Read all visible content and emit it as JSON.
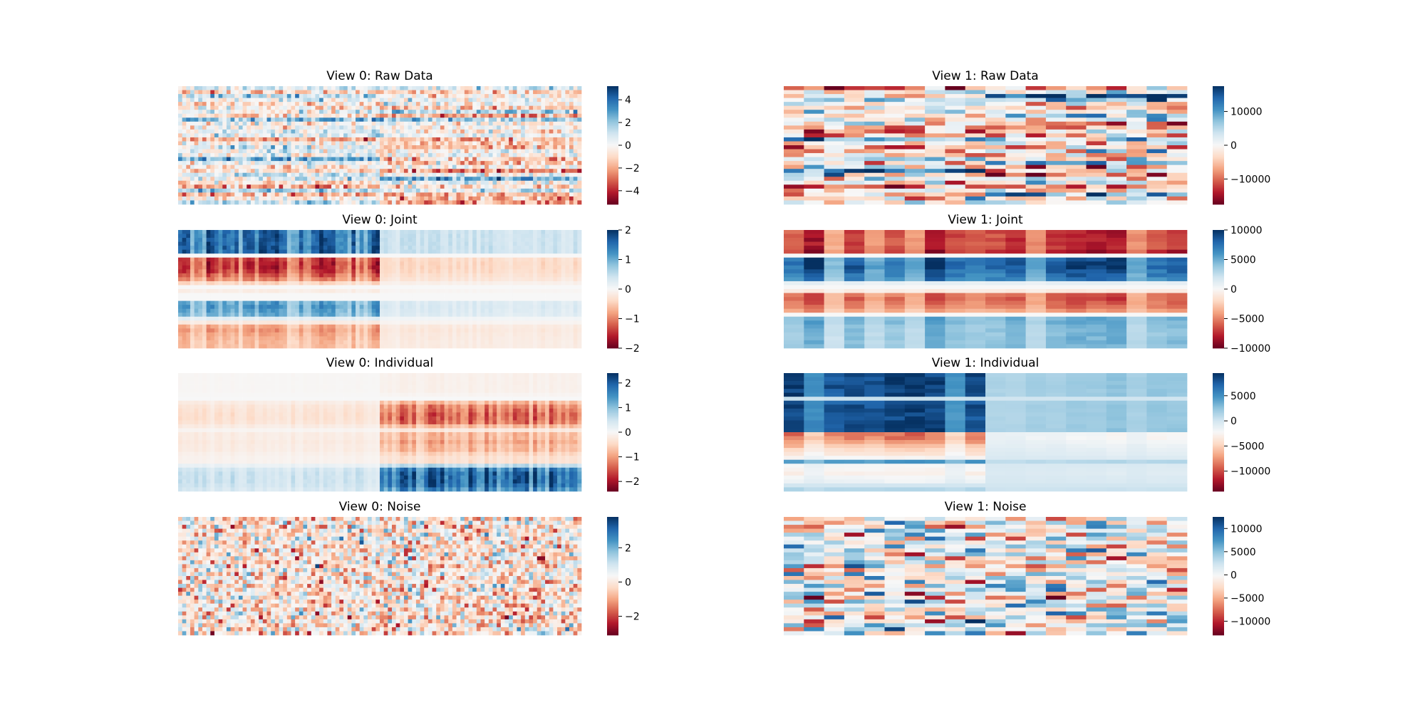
{
  "colormap": {
    "name": "RdBu",
    "stops": [
      "#67001f",
      "#b2182b",
      "#d6604d",
      "#f4a582",
      "#fddbc7",
      "#f7f7f7",
      "#d1e5f0",
      "#92c5de",
      "#4393c3",
      "#2166ac",
      "#053061"
    ]
  },
  "chart_data": [
    {
      "type": "heatmap",
      "title": "View 0: Raw Data",
      "rows": 30,
      "cols": 100,
      "vmin": -5.2,
      "vmax": 5.2,
      "colorbar_ticks": [
        -4,
        -2,
        0,
        2,
        4
      ],
      "colorbar_tick_labels": [
        "−4",
        "−2",
        "0",
        "2",
        "4"
      ],
      "seed": 11,
      "model": {
        "kind": "raw",
        "joint_amp": 1.8,
        "indiv_amp": 2.2,
        "noise": 1.0,
        "split_col": 50
      }
    },
    {
      "type": "heatmap",
      "title": "View 1: Raw Data",
      "rows": 30,
      "cols": 20,
      "vmin": -17500,
      "vmax": 17500,
      "colorbar_ticks": [
        -10000,
        0,
        10000
      ],
      "colorbar_tick_labels": [
        "−10000",
        "0",
        "10000"
      ],
      "seed": 23,
      "model": {
        "kind": "raw",
        "joint_amp": 9500,
        "indiv_amp": 8000,
        "noise": 5000,
        "split_col": 10
      }
    },
    {
      "type": "heatmap",
      "title": "View 0: Joint",
      "rows": 30,
      "cols": 100,
      "vmin": -2.0,
      "vmax": 2.0,
      "colorbar_ticks": [
        -2,
        -1,
        0,
        1,
        2
      ],
      "colorbar_tick_labels": [
        "−2",
        "−1",
        "0",
        "1",
        "2"
      ],
      "seed": 31,
      "model": {
        "kind": "joint",
        "row_pattern": [
          1.5,
          1.5,
          1.5,
          1.5,
          1.5,
          1.5,
          0.0,
          -1.3,
          -1.4,
          -1.4,
          -1.3,
          -1.1,
          -0.9,
          -0.4,
          0.0,
          -0.15,
          0.0,
          0.0,
          1.0,
          1.1,
          1.0,
          0.9,
          0.2,
          -0.2,
          -0.7,
          -0.8,
          -0.7,
          -0.65,
          -0.6,
          -0.6
        ],
        "left_scale": 1.0,
        "right_scale": 0.28,
        "split_col": 50
      }
    },
    {
      "type": "heatmap",
      "title": "View 1: Joint",
      "rows": 30,
      "cols": 20,
      "vmin": -10000,
      "vmax": 10000,
      "colorbar_ticks": [
        -10000,
        -5000,
        0,
        5000,
        10000
      ],
      "colorbar_tick_labels": [
        "−10000",
        "−5000",
        "0",
        "5000",
        "10000"
      ],
      "seed": 37,
      "model": {
        "kind": "joint",
        "row_pattern": [
          -0.75,
          -0.75,
          -0.75,
          -0.75,
          -0.75,
          -0.85,
          0.0,
          0.85,
          0.9,
          0.9,
          0.85,
          0.8,
          0.75,
          0.1,
          0.0,
          -0.1,
          -0.6,
          -0.65,
          -0.6,
          -0.55,
          -0.45,
          0.0,
          0.5,
          0.5,
          0.45,
          0.45,
          0.45,
          0.45,
          0.45,
          0.45
        ],
        "left_scale": 8500,
        "right_scale": 8500,
        "split_col": 10
      }
    },
    {
      "type": "heatmap",
      "title": "View 0: Individual",
      "rows": 30,
      "cols": 100,
      "vmin": -2.4,
      "vmax": 2.4,
      "colorbar_ticks": [
        -2,
        -1,
        0,
        1,
        2
      ],
      "colorbar_tick_labels": [
        "−2",
        "−1",
        "0",
        "1",
        "2"
      ],
      "seed": 41,
      "model": {
        "kind": "indiv",
        "row_pattern": [
          -0.1,
          -0.1,
          -0.1,
          -0.1,
          -0.1,
          -0.05,
          0.0,
          -0.6,
          -0.9,
          -1.0,
          -1.1,
          -1.1,
          -1.0,
          -0.6,
          -0.2,
          -0.6,
          -0.6,
          -0.7,
          -0.6,
          -0.6,
          -0.4,
          -0.3,
          -0.3,
          0.5,
          1.3,
          1.5,
          1.5,
          1.5,
          1.4,
          1.2
        ],
        "left_scale": 0.35,
        "right_scale": 1.3,
        "split_col": 50
      }
    },
    {
      "type": "heatmap",
      "title": "View 1: Individual",
      "rows": 30,
      "cols": 20,
      "vmin": -14000,
      "vmax": 9500,
      "colorbar_ticks": [
        -10000,
        -5000,
        0,
        5000
      ],
      "colorbar_tick_labels": [
        "−10000",
        "−5000",
        "0",
        "5000"
      ],
      "seed": 47,
      "model": {
        "kind": "indiv",
        "row_pattern": [
          1.0,
          1.0,
          1.05,
          1.05,
          1.0,
          1.0,
          0.05,
          0.95,
          1.0,
          1.0,
          0.95,
          0.95,
          1.0,
          1.0,
          1.05,
          -1.0,
          -1.0,
          -0.85,
          -0.7,
          -0.55,
          -0.45,
          -0.3,
          0.55,
          -0.25,
          -0.3,
          -0.35,
          -0.25,
          -0.2,
          0.0,
          0.15
        ],
        "left_scale": 8500,
        "right_scale": 2200,
        "split_col": 10
      }
    },
    {
      "type": "heatmap",
      "title": "View 0: Noise",
      "rows": 30,
      "cols": 100,
      "vmin": -3.1,
      "vmax": 3.8,
      "colorbar_ticks": [
        -2,
        0,
        2
      ],
      "colorbar_tick_labels": [
        "−2",
        "0",
        "2"
      ],
      "seed": 53,
      "model": {
        "kind": "noise",
        "sigma": 1.0
      }
    },
    {
      "type": "heatmap",
      "title": "View 1: Noise",
      "rows": 30,
      "cols": 20,
      "vmin": -13000,
      "vmax": 12500,
      "colorbar_ticks": [
        -10000,
        -5000,
        0,
        5000,
        10000
      ],
      "colorbar_tick_labels": [
        "−10000",
        "−5000",
        "0",
        "5000",
        "10000"
      ],
      "seed": 59,
      "model": {
        "kind": "noise",
        "sigma": 4800
      }
    }
  ]
}
